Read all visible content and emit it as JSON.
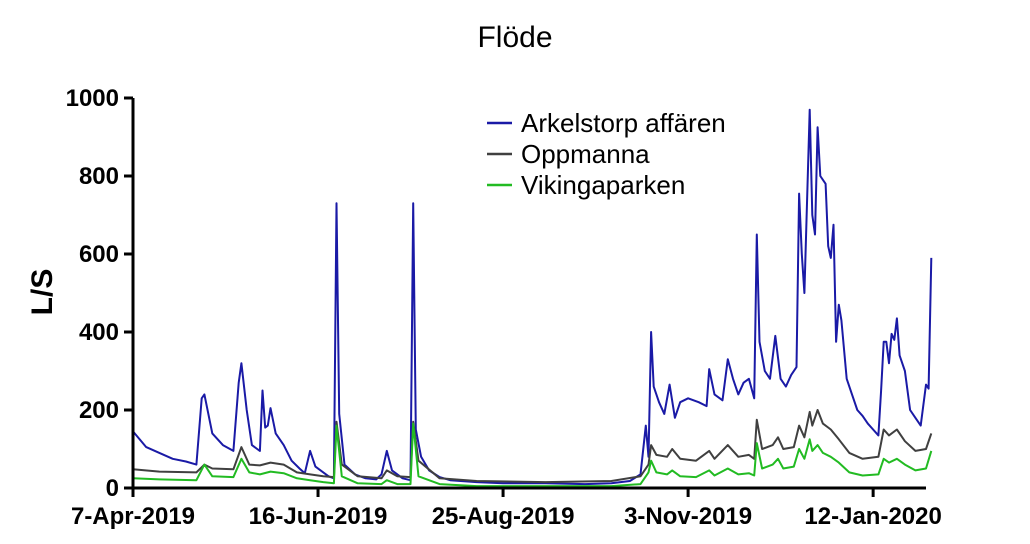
{
  "chart_data": {
    "type": "line",
    "title": "Flöde",
    "xlabel": "",
    "ylabel": "L/S",
    "ylim": [
      0,
      1000
    ],
    "yticks": [
      0,
      200,
      400,
      600,
      800,
      1000
    ],
    "xlim": [
      "2019-04-07",
      "2020-02-01"
    ],
    "xticks": [
      {
        "date": "2019-04-07",
        "label": "7-Apr-2019"
      },
      {
        "date": "2019-06-16",
        "label": "16-Jun-2019"
      },
      {
        "date": "2019-08-25",
        "label": "25-Aug-2019"
      },
      {
        "date": "2019-11-03",
        "label": "3-Nov-2019"
      },
      {
        "date": "2020-01-12",
        "label": "12-Jan-2020"
      }
    ],
    "legend_position": "top-right",
    "grid": false,
    "series": [
      {
        "name": "Arkelstorp affären",
        "color": "#1a1aa6",
        "points": [
          [
            "2019-04-07",
            145
          ],
          [
            "2019-04-12",
            105
          ],
          [
            "2019-04-17",
            90
          ],
          [
            "2019-04-22",
            75
          ],
          [
            "2019-04-27",
            68
          ],
          [
            "2019-05-01",
            60
          ],
          [
            "2019-05-03",
            230
          ],
          [
            "2019-05-04",
            240
          ],
          [
            "2019-05-07",
            140
          ],
          [
            "2019-05-11",
            110
          ],
          [
            "2019-05-15",
            95
          ],
          [
            "2019-05-17",
            270
          ],
          [
            "2019-05-18",
            320
          ],
          [
            "2019-05-20",
            200
          ],
          [
            "2019-05-22",
            110
          ],
          [
            "2019-05-24",
            100
          ],
          [
            "2019-05-25",
            95
          ],
          [
            "2019-05-26",
            250
          ],
          [
            "2019-05-27",
            155
          ],
          [
            "2019-05-28",
            160
          ],
          [
            "2019-05-29",
            205
          ],
          [
            "2019-05-31",
            140
          ],
          [
            "2019-06-03",
            110
          ],
          [
            "2019-06-06",
            70
          ],
          [
            "2019-06-09",
            50
          ],
          [
            "2019-06-11",
            38
          ],
          [
            "2019-06-13",
            95
          ],
          [
            "2019-06-15",
            55
          ],
          [
            "2019-06-18",
            40
          ],
          [
            "2019-06-20",
            30
          ],
          [
            "2019-06-22",
            25
          ],
          [
            "2019-06-23",
            730
          ],
          [
            "2019-06-24",
            190
          ],
          [
            "2019-06-26",
            60
          ],
          [
            "2019-06-30",
            35
          ],
          [
            "2019-07-04",
            25
          ],
          [
            "2019-07-08",
            22
          ],
          [
            "2019-07-10",
            35
          ],
          [
            "2019-07-12",
            95
          ],
          [
            "2019-07-14",
            45
          ],
          [
            "2019-07-18",
            25
          ],
          [
            "2019-07-21",
            20
          ],
          [
            "2019-07-22",
            730
          ],
          [
            "2019-07-23",
            150
          ],
          [
            "2019-07-25",
            80
          ],
          [
            "2019-07-28",
            45
          ],
          [
            "2019-08-01",
            28
          ],
          [
            "2019-08-05",
            20
          ],
          [
            "2019-08-15",
            15
          ],
          [
            "2019-08-25",
            12
          ],
          [
            "2019-09-10",
            12
          ],
          [
            "2019-09-25",
            10
          ],
          [
            "2019-10-05",
            12
          ],
          [
            "2019-10-12",
            18
          ],
          [
            "2019-10-16",
            35
          ],
          [
            "2019-10-18",
            160
          ],
          [
            "2019-10-19",
            80
          ],
          [
            "2019-10-20",
            400
          ],
          [
            "2019-10-21",
            260
          ],
          [
            "2019-10-23",
            220
          ],
          [
            "2019-10-25",
            190
          ],
          [
            "2019-10-27",
            265
          ],
          [
            "2019-10-29",
            180
          ],
          [
            "2019-10-31",
            220
          ],
          [
            "2019-11-03",
            230
          ],
          [
            "2019-11-07",
            220
          ],
          [
            "2019-11-10",
            210
          ],
          [
            "2019-11-11",
            305
          ],
          [
            "2019-11-13",
            240
          ],
          [
            "2019-11-16",
            225
          ],
          [
            "2019-11-18",
            330
          ],
          [
            "2019-11-20",
            280
          ],
          [
            "2019-11-22",
            240
          ],
          [
            "2019-11-24",
            270
          ],
          [
            "2019-11-26",
            280
          ],
          [
            "2019-11-28",
            230
          ],
          [
            "2019-11-29",
            650
          ],
          [
            "2019-11-30",
            375
          ],
          [
            "2019-12-02",
            300
          ],
          [
            "2019-12-04",
            280
          ],
          [
            "2019-12-06",
            390
          ],
          [
            "2019-12-08",
            280
          ],
          [
            "2019-12-10",
            260
          ],
          [
            "2019-12-12",
            290
          ],
          [
            "2019-12-14",
            310
          ],
          [
            "2019-12-15",
            755
          ],
          [
            "2019-12-16",
            600
          ],
          [
            "2019-12-17",
            500
          ],
          [
            "2019-12-19",
            970
          ],
          [
            "2019-12-20",
            700
          ],
          [
            "2019-12-21",
            650
          ],
          [
            "2019-12-22",
            925
          ],
          [
            "2019-12-23",
            800
          ],
          [
            "2019-12-25",
            780
          ],
          [
            "2019-12-26",
            620
          ],
          [
            "2019-12-27",
            590
          ],
          [
            "2019-12-28",
            675
          ],
          [
            "2019-12-29",
            375
          ],
          [
            "2019-12-30",
            470
          ],
          [
            "2019-12-31",
            430
          ],
          [
            "2020-01-02",
            280
          ],
          [
            "2020-01-04",
            240
          ],
          [
            "2020-01-06",
            200
          ],
          [
            "2020-01-08",
            185
          ],
          [
            "2020-01-10",
            165
          ],
          [
            "2020-01-12",
            150
          ],
          [
            "2020-01-14",
            135
          ],
          [
            "2020-01-15",
            250
          ],
          [
            "2020-01-16",
            375
          ],
          [
            "2020-01-17",
            375
          ],
          [
            "2020-01-18",
            320
          ],
          [
            "2020-01-19",
            395
          ],
          [
            "2020-01-20",
            380
          ],
          [
            "2020-01-21",
            435
          ],
          [
            "2020-01-22",
            340
          ],
          [
            "2020-01-24",
            300
          ],
          [
            "2020-01-26",
            200
          ],
          [
            "2020-01-28",
            180
          ],
          [
            "2020-01-30",
            160
          ],
          [
            "2020-02-01",
            265
          ],
          [
            "2020-02-02",
            255
          ],
          [
            "2020-02-03",
            590
          ]
        ]
      },
      {
        "name": "Oppmanna",
        "color": "#404040",
        "points": [
          [
            "2019-04-07",
            48
          ],
          [
            "2019-04-17",
            42
          ],
          [
            "2019-05-01",
            40
          ],
          [
            "2019-05-04",
            60
          ],
          [
            "2019-05-07",
            50
          ],
          [
            "2019-05-15",
            48
          ],
          [
            "2019-05-18",
            105
          ],
          [
            "2019-05-21",
            60
          ],
          [
            "2019-05-25",
            58
          ],
          [
            "2019-05-29",
            65
          ],
          [
            "2019-06-03",
            60
          ],
          [
            "2019-06-08",
            40
          ],
          [
            "2019-06-13",
            35
          ],
          [
            "2019-06-18",
            30
          ],
          [
            "2019-06-22",
            28
          ],
          [
            "2019-06-23",
            170
          ],
          [
            "2019-06-25",
            60
          ],
          [
            "2019-07-01",
            30
          ],
          [
            "2019-07-10",
            25
          ],
          [
            "2019-07-12",
            45
          ],
          [
            "2019-07-16",
            30
          ],
          [
            "2019-07-21",
            28
          ],
          [
            "2019-07-22",
            170
          ],
          [
            "2019-07-24",
            70
          ],
          [
            "2019-08-01",
            25
          ],
          [
            "2019-08-15",
            18
          ],
          [
            "2019-09-10",
            15
          ],
          [
            "2019-10-05",
            18
          ],
          [
            "2019-10-16",
            30
          ],
          [
            "2019-10-19",
            60
          ],
          [
            "2019-10-20",
            110
          ],
          [
            "2019-10-22",
            85
          ],
          [
            "2019-10-26",
            80
          ],
          [
            "2019-10-28",
            100
          ],
          [
            "2019-10-31",
            75
          ],
          [
            "2019-11-06",
            70
          ],
          [
            "2019-11-11",
            95
          ],
          [
            "2019-11-13",
            75
          ],
          [
            "2019-11-18",
            110
          ],
          [
            "2019-11-22",
            80
          ],
          [
            "2019-11-26",
            85
          ],
          [
            "2019-11-28",
            75
          ],
          [
            "2019-11-29",
            175
          ],
          [
            "2019-12-01",
            100
          ],
          [
            "2019-12-05",
            110
          ],
          [
            "2019-12-07",
            130
          ],
          [
            "2019-12-09",
            100
          ],
          [
            "2019-12-13",
            105
          ],
          [
            "2019-12-15",
            160
          ],
          [
            "2019-12-17",
            130
          ],
          [
            "2019-12-19",
            195
          ],
          [
            "2019-12-20",
            160
          ],
          [
            "2019-12-22",
            200
          ],
          [
            "2019-12-24",
            165
          ],
          [
            "2019-12-27",
            150
          ],
          [
            "2019-12-30",
            125
          ],
          [
            "2020-01-03",
            90
          ],
          [
            "2020-01-08",
            75
          ],
          [
            "2020-01-14",
            80
          ],
          [
            "2020-01-16",
            150
          ],
          [
            "2020-01-18",
            135
          ],
          [
            "2020-01-21",
            150
          ],
          [
            "2020-01-24",
            120
          ],
          [
            "2020-01-28",
            95
          ],
          [
            "2020-02-01",
            100
          ],
          [
            "2020-02-03",
            140
          ]
        ]
      },
      {
        "name": "Vikingaparken",
        "color": "#22bb22",
        "points": [
          [
            "2019-04-07",
            25
          ],
          [
            "2019-04-17",
            22
          ],
          [
            "2019-05-01",
            20
          ],
          [
            "2019-05-04",
            60
          ],
          [
            "2019-05-07",
            30
          ],
          [
            "2019-05-15",
            28
          ],
          [
            "2019-05-18",
            75
          ],
          [
            "2019-05-21",
            40
          ],
          [
            "2019-05-25",
            35
          ],
          [
            "2019-05-29",
            42
          ],
          [
            "2019-06-03",
            38
          ],
          [
            "2019-06-08",
            25
          ],
          [
            "2019-06-13",
            20
          ],
          [
            "2019-06-18",
            15
          ],
          [
            "2019-06-22",
            12
          ],
          [
            "2019-06-23",
            160
          ],
          [
            "2019-06-25",
            30
          ],
          [
            "2019-07-01",
            12
          ],
          [
            "2019-07-10",
            10
          ],
          [
            "2019-07-12",
            20
          ],
          [
            "2019-07-16",
            10
          ],
          [
            "2019-07-21",
            10
          ],
          [
            "2019-07-22",
            165
          ],
          [
            "2019-07-24",
            30
          ],
          [
            "2019-08-01",
            10
          ],
          [
            "2019-08-15",
            5
          ],
          [
            "2019-09-10",
            5
          ],
          [
            "2019-10-05",
            5
          ],
          [
            "2019-10-16",
            10
          ],
          [
            "2019-10-19",
            40
          ],
          [
            "2019-10-20",
            70
          ],
          [
            "2019-10-22",
            40
          ],
          [
            "2019-10-26",
            35
          ],
          [
            "2019-10-28",
            45
          ],
          [
            "2019-10-31",
            30
          ],
          [
            "2019-11-06",
            28
          ],
          [
            "2019-11-11",
            45
          ],
          [
            "2019-11-13",
            32
          ],
          [
            "2019-11-18",
            50
          ],
          [
            "2019-11-22",
            35
          ],
          [
            "2019-11-26",
            38
          ],
          [
            "2019-11-28",
            32
          ],
          [
            "2019-11-29",
            115
          ],
          [
            "2019-12-01",
            50
          ],
          [
            "2019-12-05",
            60
          ],
          [
            "2019-12-07",
            75
          ],
          [
            "2019-12-09",
            50
          ],
          [
            "2019-12-13",
            55
          ],
          [
            "2019-12-15",
            100
          ],
          [
            "2019-12-17",
            75
          ],
          [
            "2019-12-19",
            125
          ],
          [
            "2019-12-20",
            95
          ],
          [
            "2019-12-22",
            110
          ],
          [
            "2019-12-24",
            90
          ],
          [
            "2019-12-27",
            80
          ],
          [
            "2019-12-30",
            65
          ],
          [
            "2020-01-03",
            40
          ],
          [
            "2020-01-08",
            32
          ],
          [
            "2020-01-14",
            35
          ],
          [
            "2020-01-16",
            75
          ],
          [
            "2020-01-18",
            65
          ],
          [
            "2020-01-21",
            75
          ],
          [
            "2020-01-24",
            60
          ],
          [
            "2020-01-28",
            45
          ],
          [
            "2020-02-01",
            50
          ],
          [
            "2020-02-03",
            95
          ]
        ]
      }
    ]
  }
}
